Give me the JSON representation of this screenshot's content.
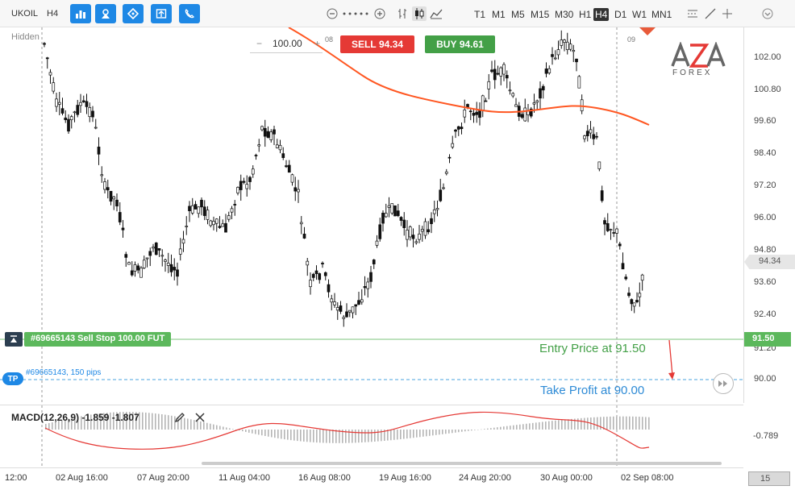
{
  "toolbar": {
    "symbol": "UKOIL",
    "period": "H4",
    "timeframes": [
      "T1",
      "M1",
      "M5",
      "M15",
      "M30",
      "H1",
      "H4",
      "D1",
      "W1",
      "MN1"
    ],
    "active_timeframe": "H4"
  },
  "chart": {
    "hidden_label": "Hidden",
    "date_marker_left": "08",
    "date_marker_right": "09",
    "logo_text": "FOREX",
    "order": {
      "quantity": "100.00",
      "sell_label": "SELL",
      "sell_price": "94.34",
      "buy_label": "BUY",
      "buy_price": "94.61"
    },
    "sell_stop_label": "#69665143 Sell Stop 100.00 FUT",
    "tp_badge": "TP",
    "tp_label": "#69665143, 150 pips",
    "entry_annotation": "Entry Price at 91.50",
    "tp_annotation": "Take Profit at 90.00",
    "price_labels": [
      "102.00",
      "100.80",
      "99.60",
      "98.40",
      "97.20",
      "96.00",
      "94.80",
      "93.60",
      "92.40",
      "91.20",
      "90.00"
    ],
    "current_price": "94.34",
    "entry_price_tag": "91.50",
    "tp_price_tag": "90.00"
  },
  "macd": {
    "label": "MACD(12,26,9)",
    "value1": "-1.859",
    "value2": "-1.807",
    "axis_label": "-0.789"
  },
  "time_axis": {
    "labels": [
      "12:00",
      "02 Aug 16:00",
      "07 Aug 20:00",
      "11 Aug 04:00",
      "16 Aug 08:00",
      "19 Aug 16:00",
      "24 Aug 20:00",
      "30 Aug 00:00",
      "02 Sep 08:00"
    ],
    "right_box": "15"
  },
  "colors": {
    "sell": "#e53935",
    "buy": "#43a047",
    "accent": "#1e88e5",
    "ma_line": "#ff5722",
    "entry_line": "#7cc47c",
    "tp_line": "#4aa3df"
  }
}
